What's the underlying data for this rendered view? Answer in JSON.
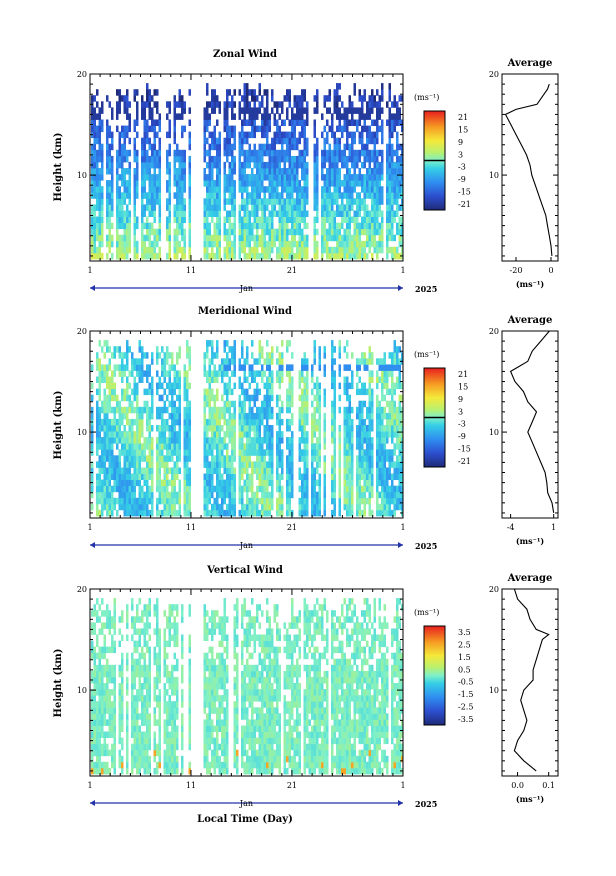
{
  "figure": {
    "x_axis_label": "Local Time (Day)",
    "month_label": "Jan",
    "year_label": "2025"
  },
  "chart_data": [
    {
      "type": "heatmap",
      "title": "Zonal Wind",
      "ylabel": "Height (km)",
      "ylim": [
        1.5,
        20
      ],
      "yticks": [
        10,
        20
      ],
      "xlim": [
        1,
        32
      ],
      "xtick_labels": [
        "1",
        "11",
        "21",
        "1"
      ],
      "xtick_days": [
        1,
        11,
        21,
        32
      ],
      "data_gap_days": [
        11.0,
        12.2
      ],
      "colorbar": {
        "unit": "(ms⁻¹)",
        "tick_labels": [
          "21",
          "15",
          "9",
          "3",
          "-3",
          "-9",
          "-15",
          "-21"
        ],
        "range": [
          -24,
          24
        ],
        "zero_line": true
      },
      "profile": {
        "title": "Average",
        "xlabel": "(ms⁻¹)",
        "xticks": [
          "-20",
          "0"
        ],
        "xlim": [
          -28,
          4
        ],
        "points": [
          [
            0.5,
            2
          ],
          [
            0,
            3
          ],
          [
            -1,
            4
          ],
          [
            -2,
            5
          ],
          [
            -3,
            6
          ],
          [
            -5,
            7
          ],
          [
            -7,
            8
          ],
          [
            -9,
            9
          ],
          [
            -11,
            10
          ],
          [
            -12,
            11
          ],
          [
            -14,
            12
          ],
          [
            -17,
            13
          ],
          [
            -20,
            14
          ],
          [
            -23,
            15
          ],
          [
            -26,
            16
          ],
          [
            -20,
            16.5
          ],
          [
            -8,
            17
          ],
          [
            -4,
            18
          ],
          [
            -2,
            18.5
          ],
          [
            -1,
            19
          ]
        ]
      }
    },
    {
      "type": "heatmap",
      "title": "Meridional Wind",
      "ylabel": "Height (km)",
      "ylim": [
        1.5,
        20
      ],
      "yticks": [
        10,
        20
      ],
      "xlim": [
        1,
        32
      ],
      "xtick_labels": [
        "1",
        "11",
        "21",
        "1"
      ],
      "xtick_days": [
        1,
        11,
        21,
        32
      ],
      "data_gap_days": [
        11.0,
        12.2
      ],
      "colorbar": {
        "unit": "(ms⁻¹)",
        "tick_labels": [
          "21",
          "15",
          "9",
          "3",
          "-3",
          "-9",
          "-15",
          "-21"
        ],
        "range": [
          -24,
          24
        ],
        "zero_line": true
      },
      "profile": {
        "title": "Average",
        "xlabel": "(ms⁻¹)",
        "xticks": [
          "-4",
          "1"
        ],
        "xlim": [
          -5,
          1.5
        ],
        "points": [
          [
            1,
            2
          ],
          [
            0.8,
            3
          ],
          [
            0.3,
            4
          ],
          [
            0.2,
            5
          ],
          [
            0,
            6
          ],
          [
            -0.5,
            7
          ],
          [
            -1,
            8
          ],
          [
            -1.5,
            9
          ],
          [
            -2,
            10
          ],
          [
            -1.5,
            11
          ],
          [
            -1,
            12
          ],
          [
            -2,
            13
          ],
          [
            -2.5,
            14
          ],
          [
            -3.5,
            15
          ],
          [
            -4,
            16
          ],
          [
            -3,
            16.5
          ],
          [
            -2,
            17
          ],
          [
            -1.5,
            18
          ],
          [
            -0.5,
            19
          ],
          [
            0.5,
            20
          ]
        ]
      }
    },
    {
      "type": "heatmap",
      "title": "Vertical Wind",
      "ylabel": "Height (km)",
      "ylim": [
        1.5,
        20
      ],
      "yticks": [
        10,
        20
      ],
      "xlim": [
        1,
        32
      ],
      "xtick_labels": [
        "1",
        "11",
        "21",
        "1"
      ],
      "xtick_days": [
        1,
        11,
        21,
        32
      ],
      "data_gap_days": [
        11.0,
        12.2
      ],
      "colorbar": {
        "unit": "(ms⁻¹)",
        "tick_labels": [
          "3.5",
          "2.5",
          "1.5",
          "0.5",
          "-0.5",
          "-1.5",
          "-2.5",
          "-3.5"
        ],
        "range": [
          -4,
          4
        ],
        "zero_line": false
      },
      "profile": {
        "title": "Average",
        "xlabel": "(ms⁻¹)",
        "xticks": [
          "0.0",
          "0.1"
        ],
        "xlim": [
          -0.05,
          0.13
        ],
        "points": [
          [
            0.06,
            2
          ],
          [
            0.02,
            3
          ],
          [
            -0.01,
            4
          ],
          [
            0.0,
            5
          ],
          [
            0.02,
            6
          ],
          [
            0.03,
            7
          ],
          [
            0.02,
            8
          ],
          [
            0.01,
            9
          ],
          [
            0.02,
            10
          ],
          [
            0.05,
            11
          ],
          [
            0.05,
            12
          ],
          [
            0.06,
            13
          ],
          [
            0.07,
            14
          ],
          [
            0.08,
            15
          ],
          [
            0.1,
            15.5
          ],
          [
            0.06,
            16
          ],
          [
            0.04,
            17
          ],
          [
            0.03,
            18
          ],
          [
            0.0,
            19
          ],
          [
            -0.01,
            20
          ]
        ]
      }
    }
  ]
}
